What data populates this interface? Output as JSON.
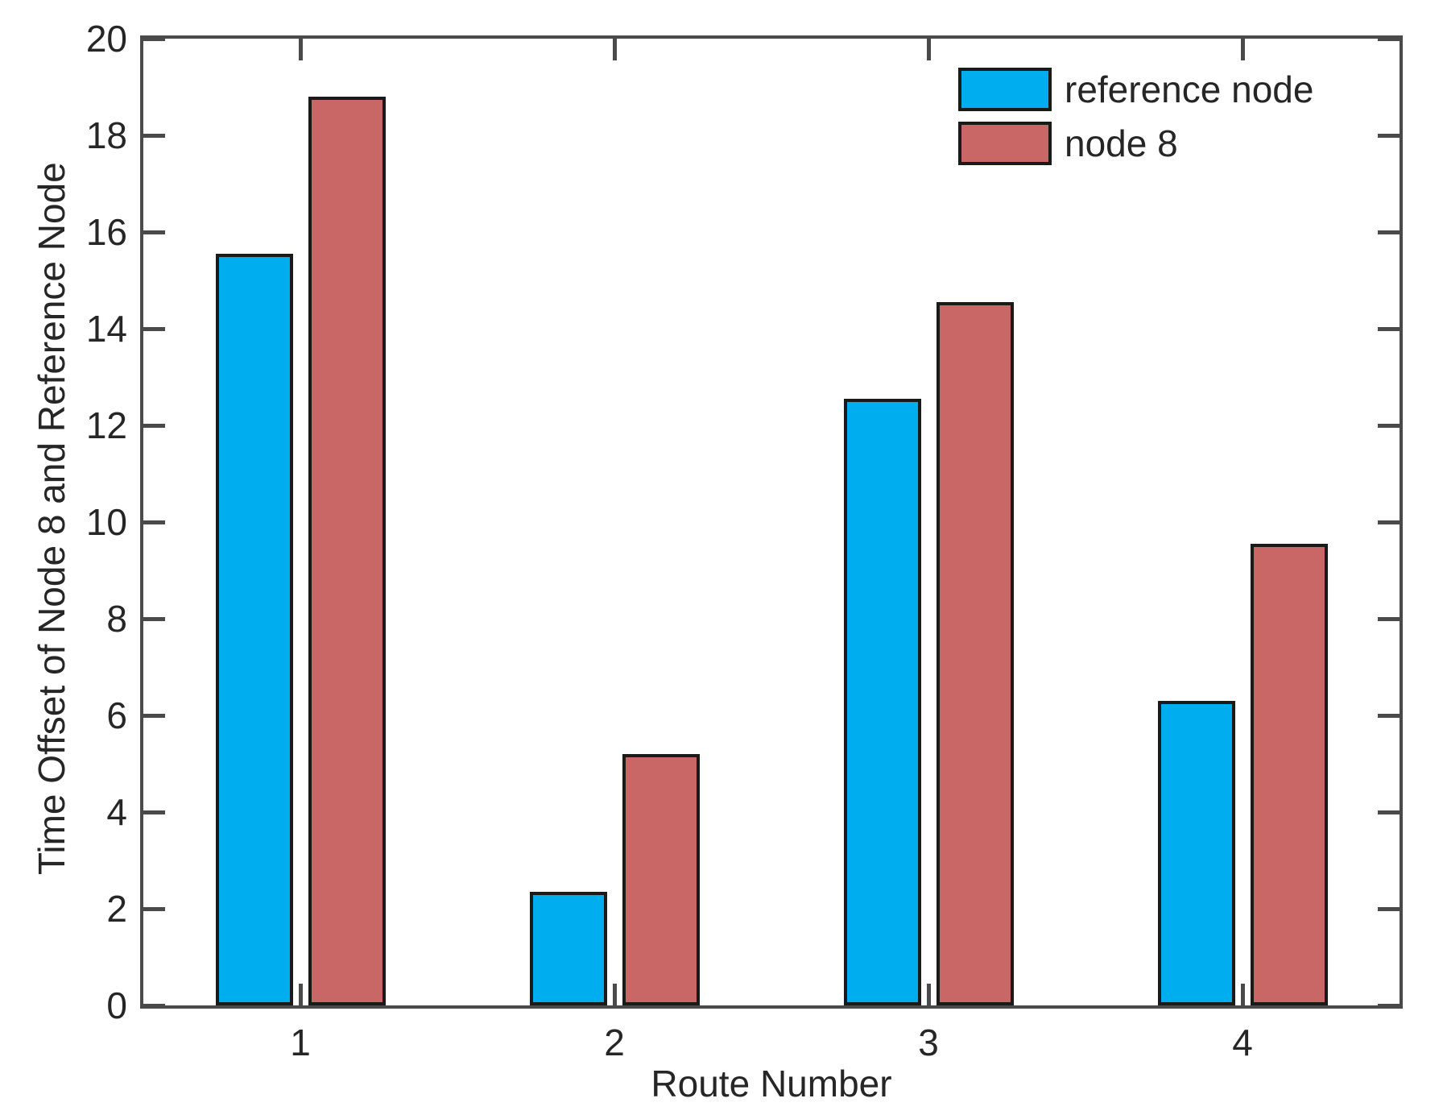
{
  "chart_data": {
    "type": "bar",
    "title": "",
    "xlabel": "Route Number",
    "ylabel": "Time Offset of Node 8 and Reference Node",
    "categories": [
      "1",
      "2",
      "3",
      "4"
    ],
    "series": [
      {
        "name": "reference node",
        "color": "#00AEEF",
        "values": [
          15.55,
          2.35,
          12.55,
          6.3
        ]
      },
      {
        "name": "node 8",
        "color": "#C96666",
        "values": [
          18.8,
          5.2,
          14.55,
          9.55
        ]
      }
    ],
    "ylim": [
      0,
      20
    ],
    "ytick_step": 2,
    "grid": false,
    "legend_position": "top-right",
    "bar_border_color": "#1a1a1a",
    "axis_color": "#4a4a4a",
    "text_color": "#262626"
  }
}
